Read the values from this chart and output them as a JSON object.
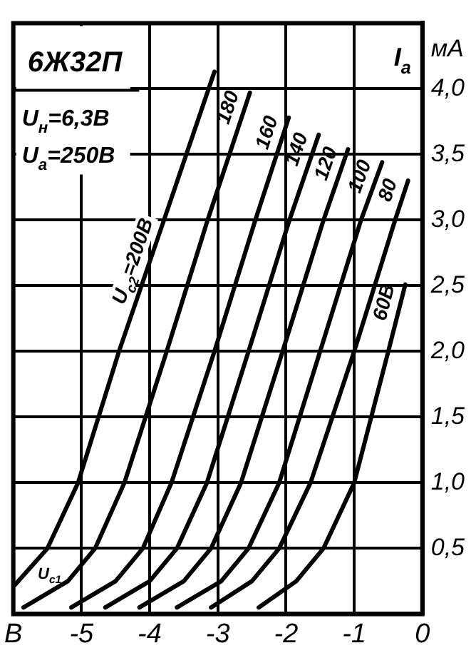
{
  "chart_data": {
    "type": "line",
    "title": "6Ж32П",
    "xlabel": "U$_{c1}$",
    "ylabel": "I$_{a}$",
    "annotations": [
      "U$_{н}$=6,3В",
      "U$_{a}$=250В"
    ],
    "xlim": [
      -6,
      0
    ],
    "ylim": [
      0,
      4.5
    ],
    "xticks": [
      {
        "value": -6,
        "label": "В"
      },
      -5,
      -4,
      -3,
      -2,
      -1,
      0
    ],
    "yticks": [
      {
        "value": 0.5,
        "label": "0,5"
      },
      {
        "value": 1,
        "label": "1,0"
      },
      {
        "value": 1.5,
        "label": "1,5"
      },
      {
        "value": 2,
        "label": "2,0"
      },
      {
        "value": 2.5,
        "label": "2,5"
      },
      {
        "value": 3,
        "label": "3,0"
      },
      {
        "value": 3.5,
        "label": "3,5"
      },
      {
        "value": 4,
        "label": "4,0"
      },
      {
        "value": 4.3,
        "label": "мА"
      }
    ],
    "grid": true,
    "legend": false,
    "marker": "none",
    "line_style": "solid",
    "series": [
      {
        "name": "U$_{c2}$=200В",
        "color": "#000000",
        "x": [
          -5.98,
          -5.5,
          -5.05,
          -4.45,
          -3.79,
          -3.05
        ],
        "values": [
          0.22,
          0.5,
          1.0,
          2.0,
          3.0,
          4.13
        ]
      },
      {
        "name": "180",
        "color": "#000000",
        "x": [
          -5.85,
          -5.2,
          -4.8,
          -4.37,
          -3.75,
          -3.15,
          -2.53
        ],
        "values": [
          0.05,
          0.25,
          0.5,
          1.0,
          2.0,
          3.0,
          3.97
        ]
      },
      {
        "name": "160",
        "color": "#000000",
        "x": [
          -5.15,
          -4.5,
          -4.1,
          -3.68,
          -3.05,
          -2.45,
          -1.96
        ],
        "values": [
          0.05,
          0.25,
          0.5,
          1.0,
          2.0,
          3.0,
          3.78
        ]
      },
      {
        "name": "140",
        "color": "#000000",
        "x": [
          -4.65,
          -4.0,
          -3.6,
          -3.16,
          -2.55,
          -1.95,
          -1.52
        ],
        "values": [
          0.05,
          0.25,
          0.5,
          1.0,
          2.0,
          3.0,
          3.65
        ]
      },
      {
        "name": "120",
        "color": "#000000",
        "x": [
          -4.15,
          -3.5,
          -3.1,
          -2.66,
          -2.05,
          -1.45,
          -1.09
        ],
        "values": [
          0.05,
          0.25,
          0.5,
          1.0,
          2.0,
          3.0,
          3.54
        ]
      },
      {
        "name": "100",
        "color": "#000000",
        "x": [
          -3.6,
          -2.95,
          -2.55,
          -2.1,
          -1.5,
          -0.9,
          -0.59
        ],
        "values": [
          0.05,
          0.25,
          0.5,
          1.0,
          2.0,
          3.0,
          3.44
        ]
      },
      {
        "name": "80",
        "color": "#000000",
        "x": [
          -3.1,
          -2.5,
          -2.1,
          -1.64,
          -1.0,
          -0.4,
          -0.21
        ],
        "values": [
          0.05,
          0.25,
          0.5,
          1.0,
          2.0,
          3.0,
          3.3
        ]
      },
      {
        "name": "60В",
        "color": "#000000",
        "x": [
          -2.4,
          -1.85,
          -1.45,
          -1.0,
          -0.5,
          -0.25
        ],
        "values": [
          0.05,
          0.25,
          0.5,
          1.0,
          2.0,
          2.51
        ]
      }
    ]
  }
}
